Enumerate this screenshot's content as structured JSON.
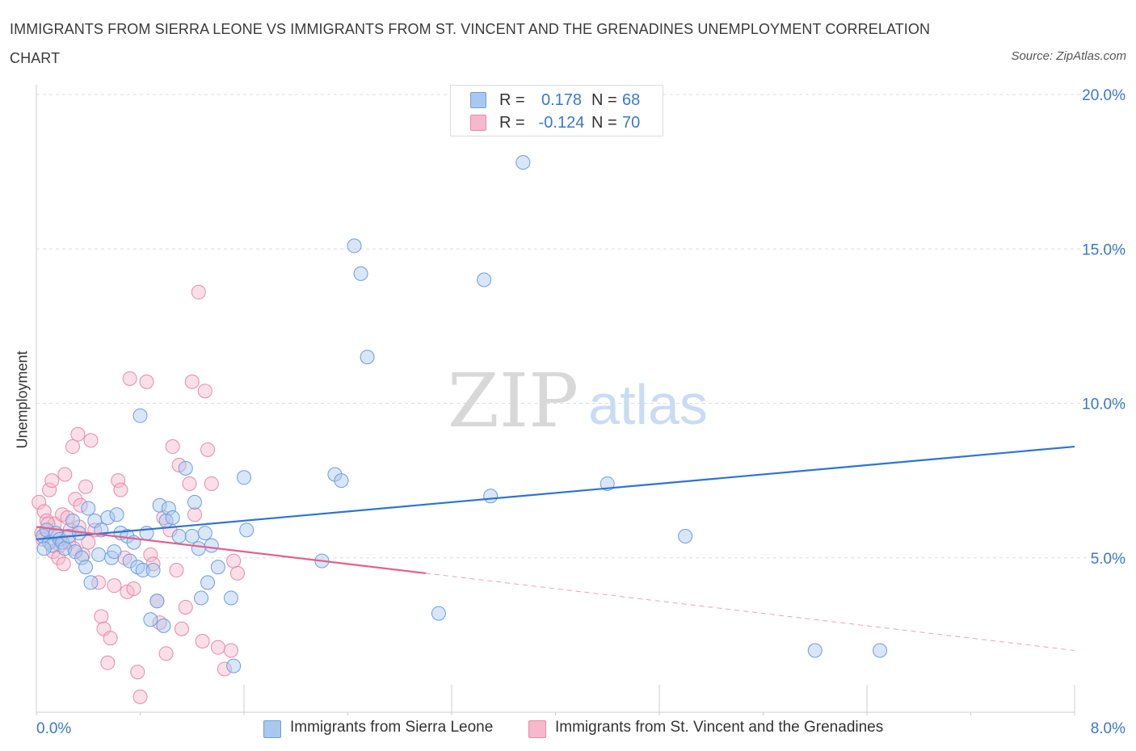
{
  "title": "IMMIGRANTS FROM SIERRA LEONE VS IMMIGRANTS FROM ST. VINCENT AND THE GRENADINES UNEMPLOYMENT CORRELATION CHART",
  "source": "Source: ZipAtlas.com",
  "watermark": {
    "zip": "ZIP",
    "atlas": "atlas"
  },
  "colors": {
    "blue_fill": "#a9c8f0",
    "blue_stroke": "#6d9ee0",
    "blue_line": "#2f74d0",
    "pink_fill": "#f6b8cc",
    "pink_stroke": "#e78aa8",
    "pink_line": "#e0628f",
    "tick_label": "#3a78c8",
    "grid": "#dddddd"
  },
  "legend_top": {
    "rows": [
      {
        "r_label": "R =",
        "r_value": "0.178",
        "n_label": "N =",
        "n_value": "68"
      },
      {
        "r_label": "R =",
        "r_value": "-0.124",
        "n_label": "N =",
        "n_value": "70"
      }
    ]
  },
  "bottom_legend": {
    "series1": "Immigrants from Sierra Leone",
    "series2": "Immigrants from St. Vincent and the Grenadines"
  },
  "chart_data": {
    "type": "scatter",
    "xlabel": "",
    "ylabel": "Unemployment",
    "xlim": [
      0,
      8
    ],
    "ylim": [
      0,
      20
    ],
    "x_tick_labels": [
      "0.0%",
      "8.0%"
    ],
    "y_ticks": [
      5,
      10,
      15,
      20
    ],
    "y_tick_labels": [
      "5.0%",
      "10.0%",
      "15.0%",
      "20.0%"
    ],
    "grid": "horizontal dashed",
    "legend_placement": "top-center and bottom",
    "series": [
      {
        "name": "Immigrants from Sierra Leone",
        "color": "#a9c8f0",
        "trend": {
          "x": [
            0,
            8
          ],
          "y": [
            5.6,
            8.6
          ],
          "dashed_from": null
        },
        "points": [
          [
            0.05,
            5.7
          ],
          [
            0.08,
            5.9
          ],
          [
            0.1,
            5.5
          ],
          [
            0.12,
            5.4
          ],
          [
            0.15,
            5.8
          ],
          [
            0.18,
            5.6
          ],
          [
            0.2,
            5.5
          ],
          [
            0.22,
            5.3
          ],
          [
            0.25,
            5.7
          ],
          [
            0.28,
            6.2
          ],
          [
            0.3,
            5.2
          ],
          [
            0.33,
            5.8
          ],
          [
            0.35,
            5.0
          ],
          [
            0.38,
            4.7
          ],
          [
            0.4,
            6.6
          ],
          [
            0.42,
            4.2
          ],
          [
            0.45,
            6.2
          ],
          [
            0.48,
            5.1
          ],
          [
            0.5,
            5.9
          ],
          [
            0.55,
            6.3
          ],
          [
            0.58,
            5.0
          ],
          [
            0.6,
            5.2
          ],
          [
            0.62,
            6.4
          ],
          [
            0.65,
            5.8
          ],
          [
            0.7,
            5.7
          ],
          [
            0.72,
            4.9
          ],
          [
            0.75,
            5.5
          ],
          [
            0.78,
            4.7
          ],
          [
            0.8,
            9.6
          ],
          [
            0.82,
            4.6
          ],
          [
            0.85,
            5.8
          ],
          [
            0.88,
            3.0
          ],
          [
            0.9,
            4.6
          ],
          [
            0.93,
            3.6
          ],
          [
            0.95,
            6.7
          ],
          [
            0.98,
            2.8
          ],
          [
            1.0,
            6.2
          ],
          [
            1.02,
            6.6
          ],
          [
            1.05,
            6.3
          ],
          [
            1.1,
            5.7
          ],
          [
            1.15,
            7.9
          ],
          [
            1.2,
            5.7
          ],
          [
            1.22,
            6.8
          ],
          [
            1.25,
            5.3
          ],
          [
            1.27,
            3.7
          ],
          [
            1.3,
            5.8
          ],
          [
            1.32,
            4.2
          ],
          [
            1.35,
            5.4
          ],
          [
            1.4,
            4.7
          ],
          [
            1.5,
            3.7
          ],
          [
            1.52,
            1.5
          ],
          [
            1.6,
            7.6
          ],
          [
            1.62,
            5.9
          ],
          [
            2.2,
            4.9
          ],
          [
            2.3,
            7.7
          ],
          [
            2.35,
            7.5
          ],
          [
            2.45,
            15.1
          ],
          [
            2.5,
            14.2
          ],
          [
            2.55,
            11.5
          ],
          [
            3.1,
            3.2
          ],
          [
            3.45,
            14.0
          ],
          [
            3.5,
            7.0
          ],
          [
            3.75,
            17.8
          ],
          [
            4.4,
            7.4
          ],
          [
            5.0,
            5.7
          ],
          [
            6.0,
            2.0
          ],
          [
            6.5,
            2.0
          ],
          [
            0.06,
            5.3
          ]
        ]
      },
      {
        "name": "Immigrants from St. Vincent and the Grenadines",
        "color": "#f6b8cc",
        "trend": {
          "x": [
            0,
            8
          ],
          "y": [
            6.0,
            2.0
          ],
          "dashed_from": 3.0
        },
        "points": [
          [
            0.02,
            6.8
          ],
          [
            0.04,
            5.8
          ],
          [
            0.06,
            6.5
          ],
          [
            0.08,
            6.2
          ],
          [
            0.1,
            7.2
          ],
          [
            0.12,
            7.5
          ],
          [
            0.14,
            6.1
          ],
          [
            0.16,
            5.7
          ],
          [
            0.18,
            5.4
          ],
          [
            0.2,
            6.4
          ],
          [
            0.22,
            7.7
          ],
          [
            0.24,
            6.3
          ],
          [
            0.26,
            5.9
          ],
          [
            0.28,
            8.6
          ],
          [
            0.3,
            6.9
          ],
          [
            0.32,
            9.0
          ],
          [
            0.34,
            6.7
          ],
          [
            0.36,
            5.1
          ],
          [
            0.38,
            7.3
          ],
          [
            0.4,
            5.5
          ],
          [
            0.42,
            8.8
          ],
          [
            0.45,
            5.9
          ],
          [
            0.48,
            4.2
          ],
          [
            0.5,
            3.1
          ],
          [
            0.52,
            2.7
          ],
          [
            0.55,
            1.6
          ],
          [
            0.57,
            2.4
          ],
          [
            0.6,
            4.1
          ],
          [
            0.63,
            7.5
          ],
          [
            0.65,
            7.2
          ],
          [
            0.68,
            5.0
          ],
          [
            0.7,
            3.9
          ],
          [
            0.72,
            10.8
          ],
          [
            0.75,
            4.0
          ],
          [
            0.78,
            1.3
          ],
          [
            0.8,
            0.5
          ],
          [
            0.85,
            10.7
          ],
          [
            0.88,
            5.1
          ],
          [
            0.9,
            4.8
          ],
          [
            0.93,
            3.6
          ],
          [
            0.95,
            2.9
          ],
          [
            0.98,
            6.3
          ],
          [
            1.0,
            1.9
          ],
          [
            1.03,
            5.9
          ],
          [
            1.05,
            8.6
          ],
          [
            1.08,
            4.6
          ],
          [
            1.1,
            8.0
          ],
          [
            1.12,
            2.7
          ],
          [
            1.15,
            3.4
          ],
          [
            1.18,
            7.4
          ],
          [
            1.2,
            10.7
          ],
          [
            1.22,
            6.4
          ],
          [
            1.25,
            13.6
          ],
          [
            1.28,
            2.3
          ],
          [
            1.3,
            10.4
          ],
          [
            1.32,
            8.5
          ],
          [
            1.35,
            7.4
          ],
          [
            1.4,
            2.1
          ],
          [
            1.45,
            1.4
          ],
          [
            1.5,
            2.0
          ],
          [
            1.52,
            4.9
          ],
          [
            1.55,
            4.5
          ],
          [
            0.05,
            5.6
          ],
          [
            0.09,
            6.1
          ],
          [
            0.13,
            5.2
          ],
          [
            0.17,
            5.0
          ],
          [
            0.21,
            4.8
          ],
          [
            0.25,
            5.5
          ],
          [
            0.29,
            5.3
          ],
          [
            0.33,
            6.0
          ]
        ]
      }
    ]
  }
}
